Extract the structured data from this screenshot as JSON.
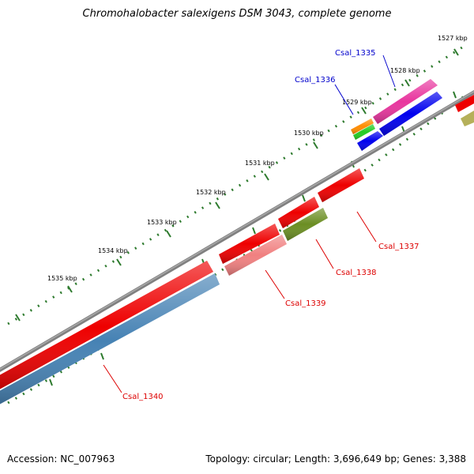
{
  "title": "Chromohalobacter salexigens DSM 3043, complete genome",
  "footer": {
    "accession": "Accession: NC_007963",
    "summary": "Topology: circular; Length: 3,696,649 bp; Genes: 3,388"
  },
  "colors": {
    "backbone": "#808080",
    "tick": "#2d7a2d",
    "label_forward": "#0000cc",
    "label_reverse": "#dd0000"
  },
  "scale_labels": [
    "1527 kbp",
    "1528 kbp",
    "1529 kbp",
    "1530 kbp",
    "1531 kbp",
    "1532 kbp",
    "1533 kbp",
    "1534 kbp",
    "1535 kbp"
  ],
  "gene_labels": {
    "csal_1335": "Csal_1335",
    "csal_1336": "Csal_1336",
    "csal_1337": "Csal_1337",
    "csal_1338": "Csal_1338",
    "csal_1339": "Csal_1339",
    "csal_1340": "Csal_1340"
  },
  "features": [
    {
      "name": "Csal_1335",
      "color": "#e8359e",
      "strand": "forward"
    },
    {
      "name": "Csal_1336",
      "color": "#ff8c00",
      "strand": "forward"
    },
    {
      "name": "Csal_1337",
      "color": "#ee0000",
      "strand": "reverse"
    },
    {
      "name": "Csal_1338",
      "color": "#6b8e23",
      "strand": "reverse"
    },
    {
      "name": "Csal_1339",
      "color": "#f08080",
      "strand": "reverse"
    },
    {
      "name": "Csal_1340",
      "color": "#4682b4",
      "strand": "reverse"
    }
  ]
}
